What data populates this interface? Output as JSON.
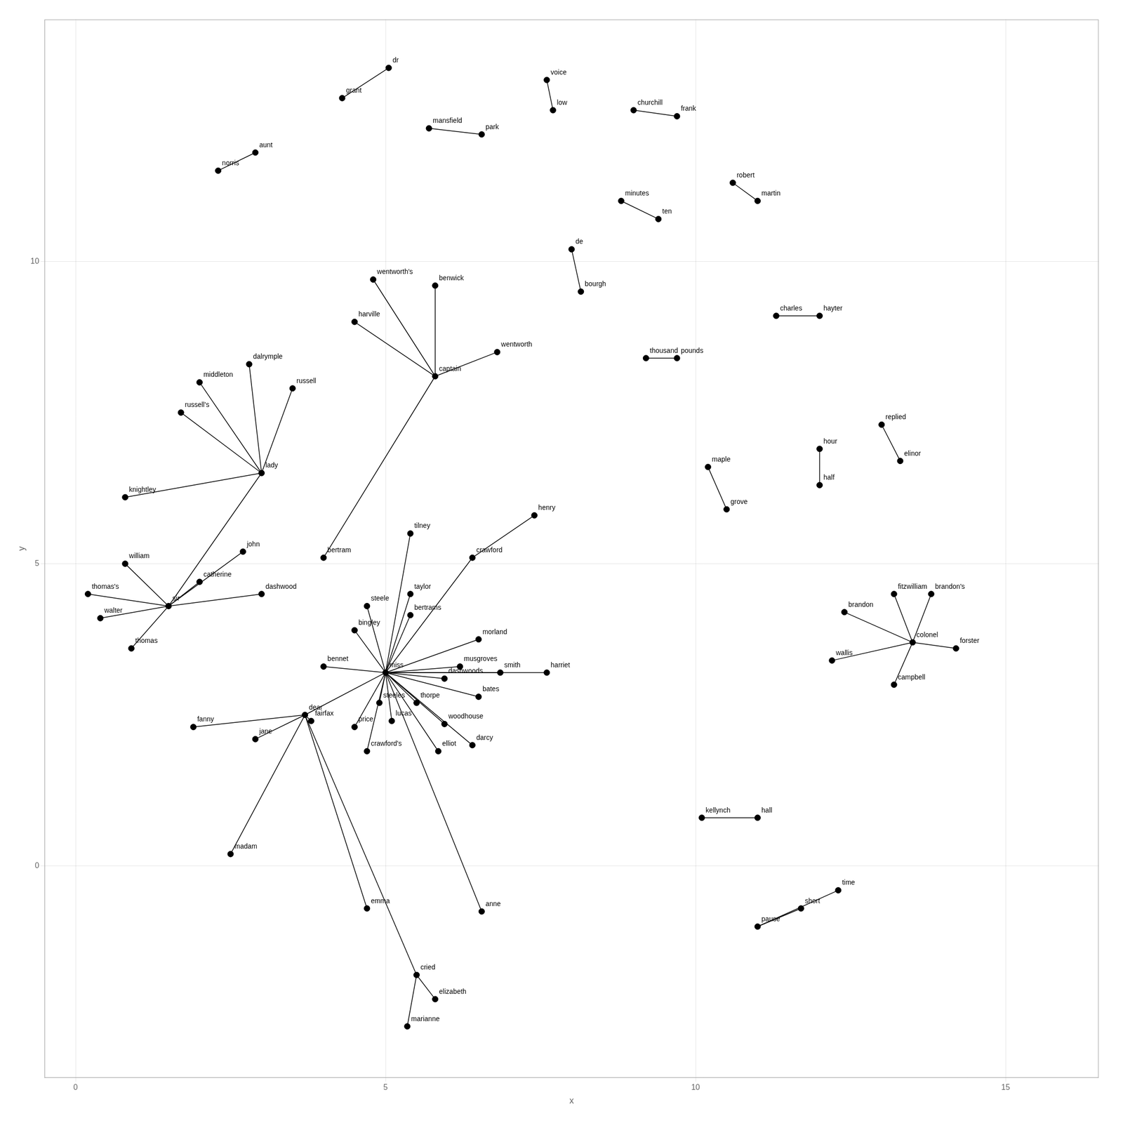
{
  "chart_data": {
    "type": "network",
    "xlabel": "x",
    "ylabel": "y",
    "xlim": [
      -0.5,
      16.5
    ],
    "ylim": [
      -3.5,
      14.0
    ],
    "xticks": [
      0,
      5,
      10,
      15
    ],
    "yticks": [
      0,
      5,
      10
    ],
    "grid": true,
    "color": "black",
    "nodes": [
      {
        "label": "miss",
        "x": 5.0,
        "y": 3.2
      },
      {
        "label": "dear",
        "x": 3.7,
        "y": 2.5
      },
      {
        "label": "sir",
        "x": 1.5,
        "y": 4.3
      },
      {
        "label": "lady",
        "x": 3.0,
        "y": 6.5
      },
      {
        "label": "captain",
        "x": 5.8,
        "y": 8.1
      },
      {
        "label": "musgroves",
        "x": 6.2,
        "y": 3.3
      },
      {
        "label": "wentworth",
        "x": 6.8,
        "y": 8.5
      },
      {
        "label": "grant",
        "x": 4.3,
        "y": 12.7
      },
      {
        "label": "dr",
        "x": 5.05,
        "y": 13.2
      },
      {
        "label": "mansfield",
        "x": 5.7,
        "y": 12.2
      },
      {
        "label": "park",
        "x": 6.55,
        "y": 12.1
      },
      {
        "label": "aunt",
        "x": 2.9,
        "y": 11.8
      },
      {
        "label": "norris",
        "x": 2.3,
        "y": 11.5
      },
      {
        "label": "wentworth's",
        "x": 4.8,
        "y": 9.7
      },
      {
        "label": "benwick",
        "x": 5.8,
        "y": 9.6
      },
      {
        "label": "harville",
        "x": 4.5,
        "y": 9.0
      },
      {
        "label": "dalrymple",
        "x": 2.8,
        "y": 8.3
      },
      {
        "label": "middleton",
        "x": 2.0,
        "y": 8.0
      },
      {
        "label": "russell",
        "x": 3.5,
        "y": 7.9
      },
      {
        "label": "russell's",
        "x": 1.7,
        "y": 7.5
      },
      {
        "label": "knightley",
        "x": 0.8,
        "y": 6.1
      },
      {
        "label": "william",
        "x": 0.8,
        "y": 5.0
      },
      {
        "label": "john",
        "x": 2.7,
        "y": 5.2
      },
      {
        "label": "catherine",
        "x": 2.0,
        "y": 4.7
      },
      {
        "label": "thomas's",
        "x": 0.2,
        "y": 4.5
      },
      {
        "label": "walter",
        "x": 0.4,
        "y": 4.1
      },
      {
        "label": "thomas",
        "x": 0.9,
        "y": 3.6
      },
      {
        "label": "dashwood",
        "x": 3.0,
        "y": 4.5
      },
      {
        "label": "bingley",
        "x": 4.5,
        "y": 3.9
      },
      {
        "label": "bennet",
        "x": 4.0,
        "y": 3.3
      },
      {
        "label": "steele",
        "x": 4.7,
        "y": 4.3
      },
      {
        "label": "taylor",
        "x": 5.4,
        "y": 4.5
      },
      {
        "label": "bertram",
        "x": 4.0,
        "y": 5.1
      },
      {
        "label": "bertrams",
        "x": 5.4,
        "y": 4.15
      },
      {
        "label": "tilney",
        "x": 5.4,
        "y": 5.5
      },
      {
        "label": "crawford",
        "x": 6.4,
        "y": 5.1
      },
      {
        "label": "henry",
        "x": 7.4,
        "y": 5.8
      },
      {
        "label": "morland",
        "x": 6.5,
        "y": 3.75
      },
      {
        "label": "smith",
        "x": 6.85,
        "y": 3.2
      },
      {
        "label": "harriet",
        "x": 7.6,
        "y": 3.2
      },
      {
        "label": "dashwoods",
        "x": 5.95,
        "y": 3.1
      },
      {
        "label": "bates",
        "x": 6.5,
        "y": 2.8
      },
      {
        "label": "thorpe",
        "x": 5.5,
        "y": 2.7
      },
      {
        "label": "lucas",
        "x": 5.1,
        "y": 2.4
      },
      {
        "label": "price",
        "x": 4.5,
        "y": 2.3
      },
      {
        "label": "steeles",
        "x": 4.9,
        "y": 2.7
      },
      {
        "label": "woodhouse",
        "x": 5.95,
        "y": 2.35
      },
      {
        "label": "elliot",
        "x": 5.85,
        "y": 1.9
      },
      {
        "label": "darcy",
        "x": 6.4,
        "y": 2.0
      },
      {
        "label": "crawford's",
        "x": 4.7,
        "y": 1.9
      },
      {
        "label": "fanny",
        "x": 1.9,
        "y": 2.3
      },
      {
        "label": "jane",
        "x": 2.9,
        "y": 2.1
      },
      {
        "label": "fairfax",
        "x": 3.8,
        "y": 2.4
      },
      {
        "label": "madam",
        "x": 2.5,
        "y": 0.2
      },
      {
        "label": "emma",
        "x": 4.7,
        "y": -0.7
      },
      {
        "label": "cried",
        "x": 5.5,
        "y": -1.8
      },
      {
        "label": "elizabeth",
        "x": 5.8,
        "y": -2.2
      },
      {
        "label": "marianne",
        "x": 5.35,
        "y": -2.65
      },
      {
        "label": "anne",
        "x": 6.55,
        "y": -0.75
      },
      {
        "label": "voice",
        "x": 7.6,
        "y": 13.0
      },
      {
        "label": "low",
        "x": 7.7,
        "y": 12.5
      },
      {
        "label": "churchill",
        "x": 9.0,
        "y": 12.5
      },
      {
        "label": "frank",
        "x": 9.7,
        "y": 12.4
      },
      {
        "label": "minutes",
        "x": 8.8,
        "y": 11.0
      },
      {
        "label": "ten",
        "x": 9.4,
        "y": 10.7
      },
      {
        "label": "robert",
        "x": 10.6,
        "y": 11.3
      },
      {
        "label": "martin",
        "x": 11.0,
        "y": 11.0
      },
      {
        "label": "de",
        "x": 8.0,
        "y": 10.2
      },
      {
        "label": "bourgh",
        "x": 8.15,
        "y": 9.5
      },
      {
        "label": "thousand",
        "x": 9.2,
        "y": 8.4
      },
      {
        "label": "pounds",
        "x": 9.7,
        "y": 8.4
      },
      {
        "label": "charles",
        "x": 11.3,
        "y": 9.1
      },
      {
        "label": "hayter",
        "x": 12.0,
        "y": 9.1
      },
      {
        "label": "maple",
        "x": 10.2,
        "y": 6.6
      },
      {
        "label": "grove",
        "x": 10.5,
        "y": 5.9
      },
      {
        "label": "hour",
        "x": 12.0,
        "y": 6.9
      },
      {
        "label": "half",
        "x": 12.0,
        "y": 6.3
      },
      {
        "label": "replied",
        "x": 13.0,
        "y": 7.3
      },
      {
        "label": "elinor",
        "x": 13.3,
        "y": 6.7
      },
      {
        "label": "fitzwilliam",
        "x": 13.2,
        "y": 4.5
      },
      {
        "label": "brandon",
        "x": 12.4,
        "y": 4.2
      },
      {
        "label": "colonel",
        "x": 13.5,
        "y": 3.7
      },
      {
        "label": "brandon's",
        "x": 13.8,
        "y": 4.5
      },
      {
        "label": "wallis",
        "x": 12.2,
        "y": 3.4
      },
      {
        "label": "campbell",
        "x": 13.2,
        "y": 3.0
      },
      {
        "label": "forster",
        "x": 14.2,
        "y": 3.6
      },
      {
        "label": "kellynch",
        "x": 10.1,
        "y": 0.8
      },
      {
        "label": "hall",
        "x": 11.0,
        "y": 0.8
      },
      {
        "label": "pause",
        "x": 11.0,
        "y": -1.0
      },
      {
        "label": "short",
        "x": 11.7,
        "y": -0.7
      },
      {
        "label": "time",
        "x": 12.3,
        "y": -0.4
      }
    ],
    "edges": [
      [
        "miss",
        "musgroves"
      ],
      [
        "miss",
        "bingley"
      ],
      [
        "miss",
        "bennet"
      ],
      [
        "miss",
        "steele"
      ],
      [
        "miss",
        "taylor"
      ],
      [
        "miss",
        "bertrams"
      ],
      [
        "miss",
        "morland"
      ],
      [
        "miss",
        "smith"
      ],
      [
        "miss",
        "harriet"
      ],
      [
        "miss",
        "dashwoods"
      ],
      [
        "miss",
        "bates"
      ],
      [
        "miss",
        "thorpe"
      ],
      [
        "miss",
        "lucas"
      ],
      [
        "miss",
        "price"
      ],
      [
        "miss",
        "steeles"
      ],
      [
        "miss",
        "woodhouse"
      ],
      [
        "miss",
        "elliot"
      ],
      [
        "miss",
        "darcy"
      ],
      [
        "miss",
        "crawford's"
      ],
      [
        "miss",
        "anne"
      ],
      [
        "miss",
        "crawford"
      ],
      [
        "miss",
        "tilney"
      ],
      [
        "miss",
        "dear"
      ],
      [
        "dear",
        "fanny"
      ],
      [
        "dear",
        "jane"
      ],
      [
        "dear",
        "fairfax"
      ],
      [
        "dear",
        "madam"
      ],
      [
        "dear",
        "emma"
      ],
      [
        "dear",
        "cried"
      ],
      [
        "lady",
        "dalrymple"
      ],
      [
        "lady",
        "middleton"
      ],
      [
        "lady",
        "russell"
      ],
      [
        "lady",
        "russell's"
      ],
      [
        "lady",
        "knightley"
      ],
      [
        "lady",
        "sir"
      ],
      [
        "sir",
        "william"
      ],
      [
        "sir",
        "john"
      ],
      [
        "sir",
        "catherine"
      ],
      [
        "sir",
        "thomas's"
      ],
      [
        "sir",
        "walter"
      ],
      [
        "sir",
        "thomas"
      ],
      [
        "sir",
        "dashwood"
      ],
      [
        "captain",
        "wentworth"
      ],
      [
        "captain",
        "wentworth's"
      ],
      [
        "captain",
        "benwick"
      ],
      [
        "captain",
        "harville"
      ],
      [
        "captain",
        "bertram"
      ],
      [
        "grant",
        "dr"
      ],
      [
        "mansfield",
        "park"
      ],
      [
        "aunt",
        "norris"
      ],
      [
        "voice",
        "low"
      ],
      [
        "churchill",
        "frank"
      ],
      [
        "minutes",
        "ten"
      ],
      [
        "robert",
        "martin"
      ],
      [
        "de",
        "bourgh"
      ],
      [
        "thousand",
        "pounds"
      ],
      [
        "charles",
        "hayter"
      ],
      [
        "maple",
        "grove"
      ],
      [
        "hour",
        "half"
      ],
      [
        "replied",
        "elinor"
      ],
      [
        "colonel",
        "fitzwilliam"
      ],
      [
        "colonel",
        "brandon"
      ],
      [
        "colonel",
        "brandon's"
      ],
      [
        "colonel",
        "wallis"
      ],
      [
        "colonel",
        "campbell"
      ],
      [
        "colonel",
        "forster"
      ],
      [
        "kellynch",
        "hall"
      ],
      [
        "pause",
        "short"
      ],
      [
        "pause",
        "time"
      ],
      [
        "cried",
        "elizabeth"
      ],
      [
        "cried",
        "marianne"
      ],
      [
        "henry",
        "crawford"
      ]
    ]
  }
}
